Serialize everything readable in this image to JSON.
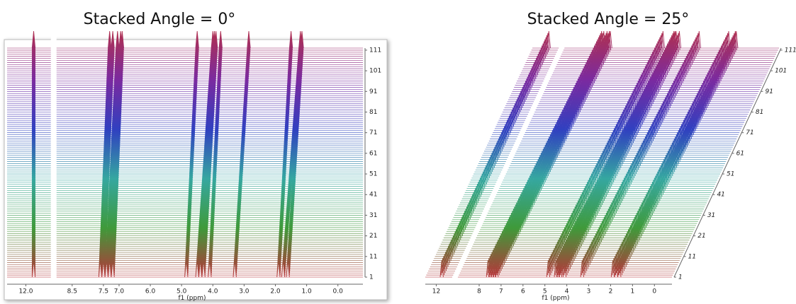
{
  "chart_data": [
    {
      "type": "stacked-spectra",
      "title": "Stacked Angle = 0°",
      "xlabel": "f1 (ppm)",
      "stack_angle": 0,
      "xlim": [
        12.6,
        -0.8
      ],
      "xbreak": [
        11.2,
        9.0
      ],
      "xticks": [
        {
          "value": 12.0,
          "label": "12.0"
        },
        {
          "value": 8.5,
          "label": "8.5"
        },
        {
          "value": 7.5,
          "label": "7.5"
        },
        {
          "value": 7.0,
          "label": "7.0"
        },
        {
          "value": 6.0,
          "label": "6.0"
        },
        {
          "value": 5.0,
          "label": "5.0"
        },
        {
          "value": 4.0,
          "label": "4.0"
        },
        {
          "value": 3.0,
          "label": "3.0"
        },
        {
          "value": 2.0,
          "label": "2.0"
        },
        {
          "value": 1.0,
          "label": "1.0"
        },
        {
          "value": 0.0,
          "label": "0.0"
        }
      ],
      "ylim": [
        1,
        112
      ],
      "yticks": [
        1,
        11,
        21,
        31,
        41,
        51,
        61,
        71,
        81,
        91,
        101,
        111
      ],
      "colors": [
        "#b8343a",
        "#3f9a3a",
        "#35a7a0",
        "#3040c0",
        "#7a2aa0",
        "#b03050"
      ],
      "peaks": [
        {
          "start": 11.75,
          "end": 11.75
        },
        {
          "start": 7.6,
          "end": 7.3
        },
        {
          "start": 7.5,
          "end": 7.2
        },
        {
          "start": 7.4,
          "end": 7.05
        },
        {
          "start": 7.3,
          "end": 6.95
        },
        {
          "start": 7.2,
          "end": 6.9
        },
        {
          "start": 4.85,
          "end": 4.5
        },
        {
          "start": 4.5,
          "end": 4.0
        },
        {
          "start": 4.4,
          "end": 3.95
        },
        {
          "start": 4.3,
          "end": 3.9
        },
        {
          "start": 4.1,
          "end": 3.75
        },
        {
          "start": 3.3,
          "end": 2.85
        },
        {
          "start": 1.9,
          "end": 1.5
        },
        {
          "start": 1.75,
          "end": 1.2
        },
        {
          "start": 1.6,
          "end": 1.15
        }
      ]
    },
    {
      "type": "stacked-spectra",
      "title": "Stacked Angle = 25°",
      "xlabel": "f1 (ppm)",
      "stack_angle": 25,
      "xlim": [
        12.5,
        -0.8
      ],
      "xbreak": [
        11.3,
        9.0
      ],
      "xticks": [
        12,
        8,
        7,
        6,
        5,
        4,
        3,
        2,
        1,
        0
      ],
      "ylim": [
        1,
        112
      ],
      "yticks": [
        1,
        11,
        21,
        31,
        41,
        51,
        61,
        71,
        81,
        91,
        101,
        111
      ],
      "colors": [
        "#b8343a",
        "#3f9a3a",
        "#35a7a0",
        "#3040c0",
        "#7a2aa0",
        "#b03050"
      ],
      "peaks": [
        {
          "start": 11.75,
          "end": 11.75
        },
        {
          "start": 7.6,
          "end": 7.3
        },
        {
          "start": 7.5,
          "end": 7.2
        },
        {
          "start": 7.4,
          "end": 7.05
        },
        {
          "start": 7.3,
          "end": 6.95
        },
        {
          "start": 7.2,
          "end": 6.9
        },
        {
          "start": 4.85,
          "end": 4.5
        },
        {
          "start": 4.5,
          "end": 4.0
        },
        {
          "start": 4.4,
          "end": 3.95
        },
        {
          "start": 4.3,
          "end": 3.9
        },
        {
          "start": 4.1,
          "end": 3.75
        },
        {
          "start": 3.3,
          "end": 2.85
        },
        {
          "start": 1.9,
          "end": 1.5
        },
        {
          "start": 1.75,
          "end": 1.2
        },
        {
          "start": 1.6,
          "end": 1.15
        }
      ]
    }
  ]
}
